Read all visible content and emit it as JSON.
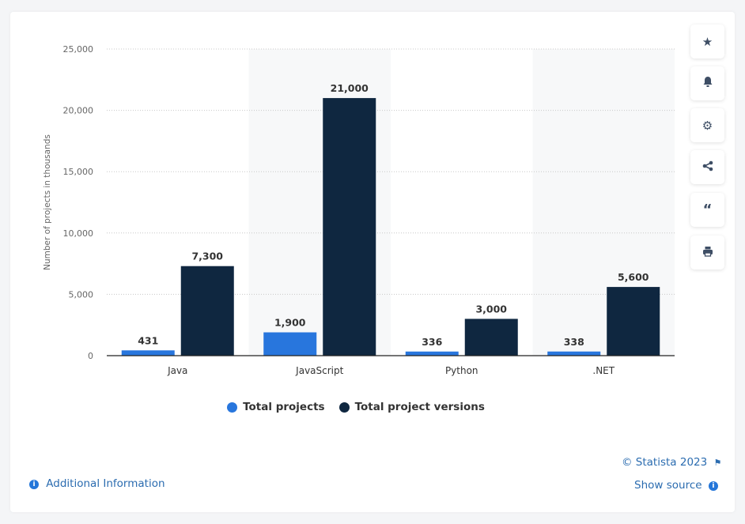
{
  "chart_data": {
    "type": "bar",
    "categories": [
      "Java",
      "JavaScript",
      "Python",
      ".NET"
    ],
    "series": [
      {
        "name": "Total projects",
        "values": [
          431,
          1900,
          336,
          338
        ],
        "labels": [
          "431",
          "1,900",
          "336",
          "338"
        ],
        "color": "#2876dd"
      },
      {
        "name": "Total project versions",
        "values": [
          7300,
          21000,
          3000,
          5600
        ],
        "labels": [
          "7,300",
          "21,000",
          "3,000",
          "5,600"
        ],
        "color": "#0f2740"
      }
    ],
    "title": "",
    "xlabel": "",
    "ylabel": "Number of projects in thousands",
    "ylim": [
      0,
      25000
    ],
    "yticks": [
      0,
      5000,
      10000,
      15000,
      20000,
      25000
    ],
    "ytick_labels": [
      "0",
      "5,000",
      "10,000",
      "15,000",
      "20,000",
      "25,000"
    ],
    "grid": true,
    "legend": "bottom"
  },
  "sidebar": {
    "icons": [
      "star-icon",
      "bell-icon",
      "gear-icon",
      "share-icon",
      "quote-icon",
      "print-icon"
    ]
  },
  "footer": {
    "copyright": "© Statista 2023",
    "additional_info": "Additional Information",
    "show_source": "Show source"
  }
}
